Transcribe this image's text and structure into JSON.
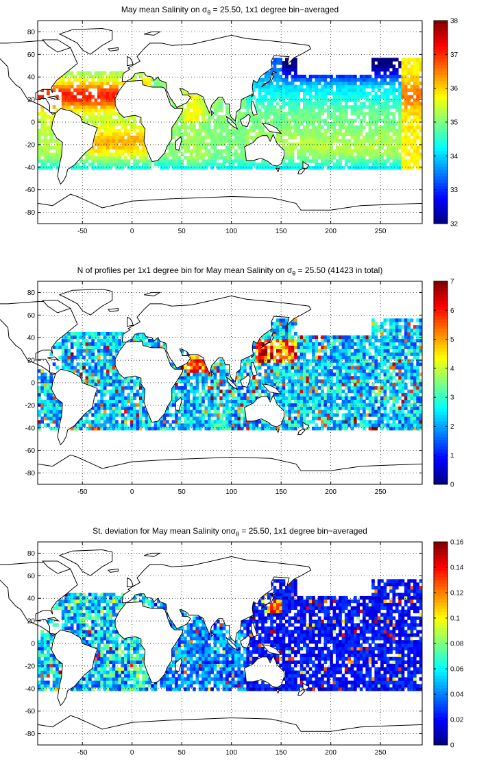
{
  "chart_data": [
    {
      "type": "heatmap",
      "title": {
        "before": "May mean Salinity on ",
        "sym": "σ",
        "sub": "θ",
        "after": " = 25.50, 1x1 degree bin−averaged"
      },
      "xlim": [
        -95,
        292
      ],
      "ylim": [
        -90,
        90
      ],
      "xticks": [
        -50,
        0,
        50,
        100,
        150,
        200,
        250
      ],
      "yticks": [
        -80,
        -60,
        -40,
        -20,
        0,
        20,
        40,
        60,
        80
      ],
      "grid": "dotted",
      "colorbar": {
        "range": [
          32,
          38
        ],
        "ticks": [
          32,
          33,
          34,
          35,
          36,
          37,
          38
        ],
        "colormap": "jet",
        "placement": "right"
      },
      "field_regions": [
        {
          "region": "North Atlantic subtropical gyre",
          "approx_value": 37.2
        },
        {
          "region": "Tropical Atlantic",
          "approx_value": 36.0
        },
        {
          "region": "Arabian Sea",
          "approx_value": 35.8
        },
        {
          "region": "Indian Ocean south",
          "approx_value": 35.1
        },
        {
          "region": "North Pacific subtropics",
          "approx_value": 34.4
        },
        {
          "region": "Subarctic North Pacific",
          "approx_value": 32.8
        },
        {
          "region": "South Pacific",
          "approx_value": 35.2
        },
        {
          "region": "Southern edge (40S)",
          "approx_value": 34.3
        }
      ]
    },
    {
      "type": "heatmap",
      "title": {
        "before": "N of profiles per 1x1 degree bin for May mean Salinity on ",
        "sym": "σ",
        "sub": "θ",
        "after": " = 25.50 (41423 in total)"
      },
      "xlim": [
        -95,
        292
      ],
      "ylim": [
        -90,
        90
      ],
      "xticks": [
        -50,
        0,
        50,
        100,
        150,
        200,
        250
      ],
      "yticks": [
        -80,
        -60,
        -40,
        -20,
        0,
        20,
        40,
        60,
        80
      ],
      "grid": "dotted",
      "colorbar": {
        "range": [
          0,
          7
        ],
        "ticks": [
          0,
          1,
          2,
          3,
          4,
          5,
          6,
          7
        ],
        "colormap": "jet",
        "placement": "right"
      },
      "total_profiles": 41423,
      "field_regions": [
        {
          "region": "Kuroshio / NW Pacific",
          "approx_value": 6
        },
        {
          "region": "Arabian Sea",
          "approx_value": 5
        },
        {
          "region": "Open ocean typical",
          "approx_value": 2
        }
      ]
    },
    {
      "type": "heatmap",
      "title": {
        "before": "St. deviation for May mean Salinity on",
        "sym": "σ",
        "sub": "θ",
        "after": " = 25.50, 1x1 degree bin−averaged"
      },
      "xlim": [
        -95,
        292
      ],
      "ylim": [
        -90,
        90
      ],
      "xticks": [
        -50,
        0,
        50,
        100,
        150,
        200,
        250
      ],
      "yticks": [
        -80,
        -60,
        -40,
        -20,
        0,
        20,
        40,
        60,
        80
      ],
      "grid": "dotted",
      "colorbar": {
        "range": [
          0,
          0.16
        ],
        "ticks": [
          0,
          0.02,
          0.04,
          0.06,
          0.08,
          0.1,
          0.12,
          0.14,
          0.16
        ],
        "colormap": "jet",
        "placement": "right"
      },
      "field_regions": [
        {
          "region": "North Pacific",
          "approx_value": 0.015
        },
        {
          "region": "Tropical Atlantic",
          "approx_value": 0.05
        },
        {
          "region": "Indian Ocean",
          "approx_value": 0.03
        },
        {
          "region": "Kuroshio",
          "approx_value": 0.12
        }
      ]
    }
  ]
}
